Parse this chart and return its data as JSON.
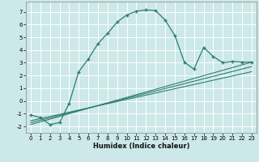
{
  "xlabel": "Humidex (Indice chaleur)",
  "bg_color": "#cce8e8",
  "grid_color": "#b0d0d0",
  "line_color": "#2d7d6e",
  "xlim": [
    -0.5,
    23.5
  ],
  "ylim": [
    -2.5,
    7.8
  ],
  "xticks": [
    0,
    1,
    2,
    3,
    4,
    5,
    6,
    7,
    8,
    9,
    10,
    11,
    12,
    13,
    14,
    15,
    16,
    17,
    18,
    19,
    20,
    21,
    22,
    23
  ],
  "yticks": [
    -2,
    -1,
    0,
    1,
    2,
    3,
    4,
    5,
    6,
    7
  ],
  "main_curve_x": [
    0,
    1,
    2,
    3,
    4,
    5,
    6,
    7,
    8,
    9,
    10,
    11,
    12,
    13,
    14,
    15,
    16,
    17,
    18,
    19,
    20,
    21,
    22,
    23
  ],
  "main_curve_y": [
    -1.1,
    -1.3,
    -1.85,
    -1.7,
    -0.2,
    2.3,
    3.3,
    4.5,
    5.3,
    6.2,
    6.75,
    7.05,
    7.15,
    7.1,
    6.35,
    5.15,
    3.05,
    2.5,
    4.2,
    3.5,
    3.0,
    3.1,
    3.05,
    3.05
  ],
  "line1_x": [
    0,
    23
  ],
  "line1_y": [
    -1.85,
    3.05
  ],
  "line2_x": [
    0,
    23
  ],
  "line2_y": [
    -1.55,
    2.3
  ],
  "line3_x": [
    0,
    23
  ],
  "line3_y": [
    -1.7,
    2.7
  ]
}
